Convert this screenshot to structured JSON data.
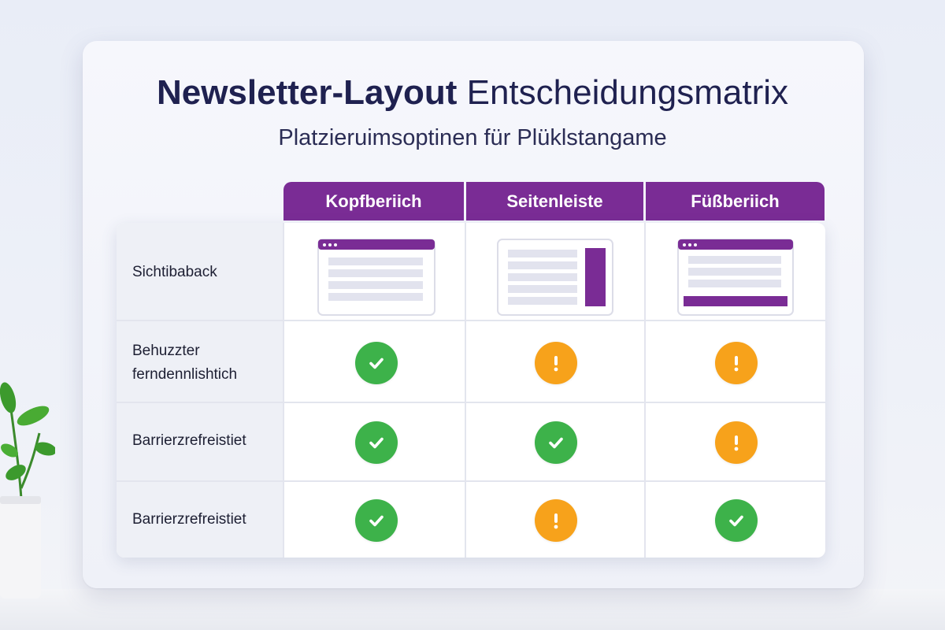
{
  "title": {
    "bold": "Newsletter-Layout",
    "light": "Entscheidungsmatrix"
  },
  "subtitle": "Platzieruimsoptinen für Plüklstangame",
  "columns": [
    "Kopfberiich",
    "Seitenleiste",
    "Füßberiich"
  ],
  "rows": [
    {
      "label": "Sichtibaback",
      "type": "thumbnail",
      "thumbnails": [
        "header-layout-icon",
        "sidebar-layout-icon",
        "footer-layout-icon"
      ]
    },
    {
      "label": "Behuzzter\nferndennlishtich",
      "type": "status",
      "values": [
        "check",
        "warning",
        "warning"
      ]
    },
    {
      "label": "Barrierzrefreistiet",
      "type": "status",
      "values": [
        "check",
        "check",
        "warning"
      ]
    },
    {
      "label": "Barrierzrefreistiet",
      "type": "status",
      "values": [
        "check",
        "warning",
        "check"
      ]
    }
  ],
  "colors": {
    "accent": "#7a2c95",
    "check": "#3db24a",
    "warning": "#f7a21b",
    "title": "#1f2150"
  }
}
